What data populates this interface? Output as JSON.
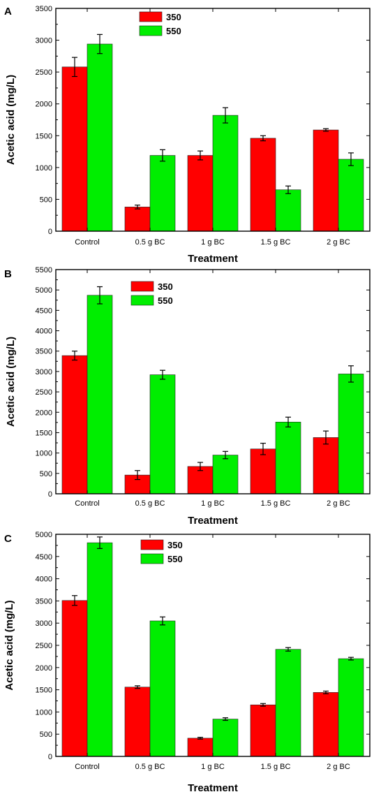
{
  "chart_data": [
    {
      "type": "bar",
      "panel": "A",
      "categories": [
        "Control",
        "0.5 g BC",
        "1 g BC",
        "1.5 g BC",
        "2 g BC"
      ],
      "series": [
        {
          "name": "350",
          "color": "#ff0000",
          "values": [
            2580,
            380,
            1190,
            1460,
            1590
          ],
          "errors": [
            150,
            30,
            70,
            40,
            20
          ]
        },
        {
          "name": "550",
          "color": "#00ee00",
          "values": [
            2940,
            1190,
            1820,
            650,
            1130
          ],
          "errors": [
            150,
            90,
            120,
            60,
            100
          ]
        }
      ],
      "xlabel": "Treatment",
      "ylabel": "Acetic acid (mg/L)",
      "ylim": [
        0,
        3500
      ],
      "yticks": [
        0,
        500,
        1000,
        1500,
        2000,
        2500,
        3000,
        3500
      ],
      "legend_position": "top-center"
    },
    {
      "type": "bar",
      "panel": "B",
      "categories": [
        "Control",
        "0.5 g BC",
        "1 g BC",
        "1.5 g BC",
        "2 g BC"
      ],
      "series": [
        {
          "name": "350",
          "color": "#ff0000",
          "values": [
            3390,
            460,
            670,
            1100,
            1380
          ],
          "errors": [
            110,
            110,
            100,
            140,
            160
          ]
        },
        {
          "name": "550",
          "color": "#00ee00",
          "values": [
            4870,
            2920,
            950,
            1760,
            2940
          ],
          "errors": [
            210,
            110,
            90,
            120,
            200
          ]
        }
      ],
      "xlabel": "Treatment",
      "ylabel": "Acetic acid (mg/L)",
      "ylim": [
        0,
        5500
      ],
      "yticks": [
        0,
        500,
        1000,
        1500,
        2000,
        2500,
        3000,
        3500,
        4000,
        4500,
        5000,
        5500
      ],
      "legend_position": "top-center"
    },
    {
      "type": "bar",
      "panel": "C",
      "categories": [
        "Control",
        "0.5 g BC",
        "1 g BC",
        "1.5 g BC",
        "2 g BC"
      ],
      "series": [
        {
          "name": "350",
          "color": "#ff0000",
          "values": [
            3510,
            1560,
            410,
            1160,
            1440
          ],
          "errors": [
            110,
            30,
            20,
            30,
            30
          ]
        },
        {
          "name": "550",
          "color": "#00ee00",
          "values": [
            4810,
            3050,
            840,
            2410,
            2200
          ],
          "errors": [
            130,
            90,
            30,
            40,
            30
          ]
        }
      ],
      "xlabel": "Treatment",
      "ylabel": "Acetic acid (mg/L)",
      "ylim": [
        0,
        5000
      ],
      "yticks": [
        0,
        500,
        1000,
        1500,
        2000,
        2500,
        3000,
        3500,
        4000,
        4500,
        5000
      ],
      "legend_position": "top-center"
    }
  ]
}
